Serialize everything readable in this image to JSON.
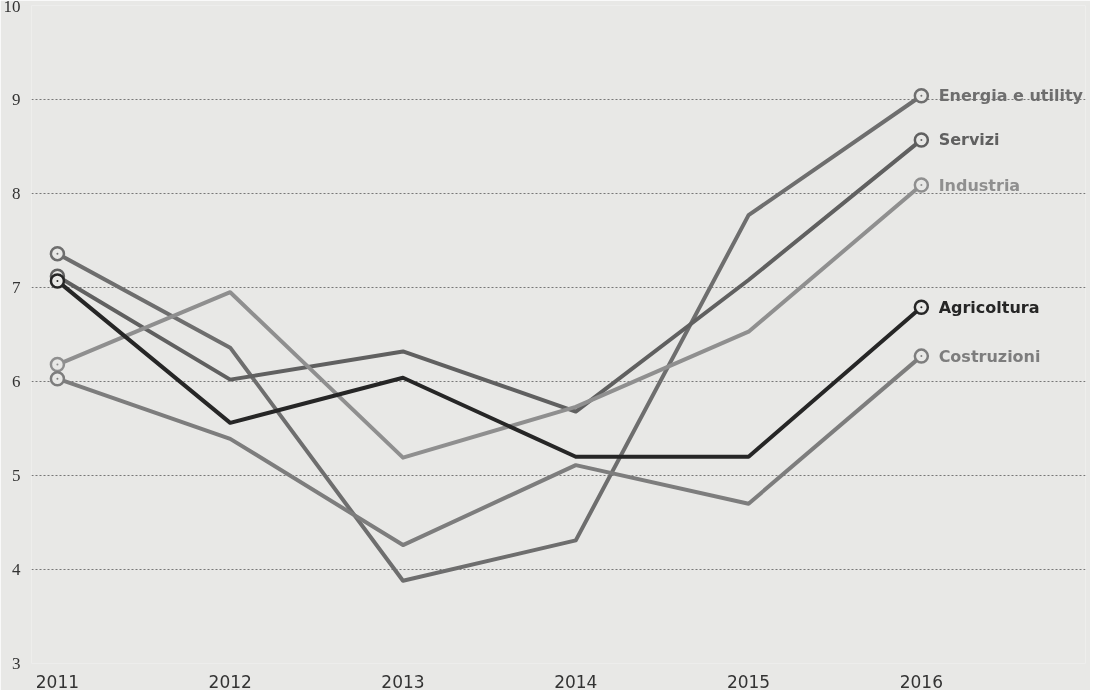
{
  "chart_data": {
    "type": "line",
    "categories": [
      "2011",
      "2012",
      "2013",
      "2014",
      "2015",
      "2016"
    ],
    "series": [
      {
        "name": "Energia e utility",
        "color": "#6e6e6e",
        "values": [
          7.36,
          6.36,
          3.88,
          4.31,
          7.77,
          9.04
        ]
      },
      {
        "name": "Servizi",
        "color": "#606060",
        "values": [
          7.12,
          6.02,
          6.32,
          5.68,
          7.08,
          8.57
        ]
      },
      {
        "name": "Industria",
        "color": "#8f8f8f",
        "values": [
          6.18,
          6.95,
          5.19,
          5.73,
          6.53,
          8.09
        ]
      },
      {
        "name": "Agricoltura",
        "color": "#262626",
        "values": [
          7.07,
          5.56,
          6.04,
          5.2,
          5.2,
          6.79
        ]
      },
      {
        "name": "Costruzioni",
        "color": "#7d7d7d",
        "values": [
          6.03,
          5.39,
          4.26,
          5.11,
          4.7,
          6.27
        ]
      }
    ],
    "ylim": [
      3,
      10
    ],
    "yticks": [
      3,
      4,
      5,
      6,
      7,
      8,
      9,
      10
    ],
    "grid": "y",
    "line_style": "solid"
  }
}
